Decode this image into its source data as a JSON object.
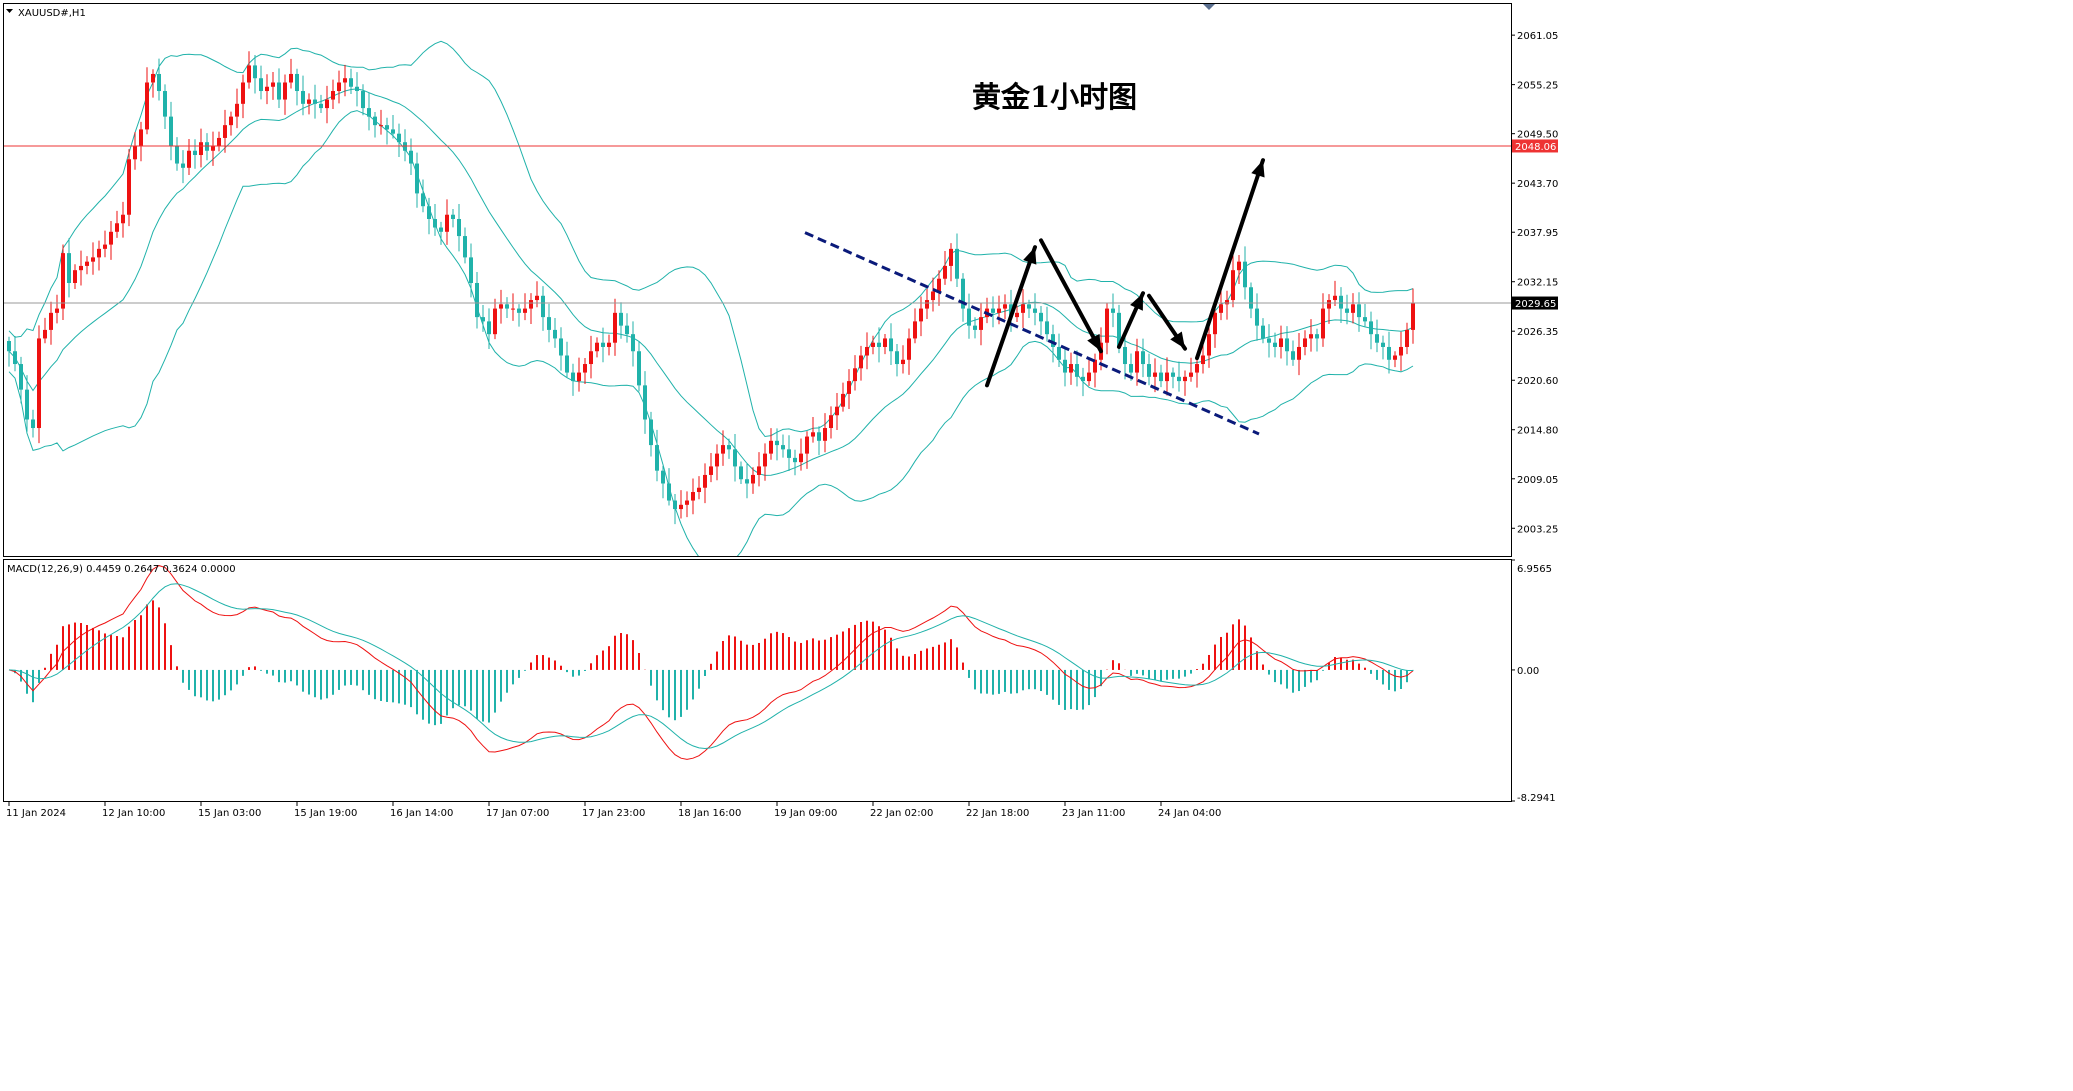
{
  "window": {
    "symbol_label": "XAUUSD#,H1"
  },
  "annotation": {
    "title": "黄金1小时图"
  },
  "colors": {
    "bull": "#ee1111",
    "bear": "#20b2aa",
    "bollinger": "#20b2aa",
    "resistance_line": "#ee3333",
    "current_price_line": "#999999",
    "trend_line": "#0a1a7a",
    "arrows": "#000000",
    "macd_line": "#ee1111",
    "signal_line": "#20b2aa",
    "frame": "#000000"
  },
  "chart_data": [
    {
      "type": "candlestick",
      "panel": "price",
      "symbol": "XAUUSD#",
      "timeframe": "H1",
      "price_axis": {
        "ticks": [
          "2061.05",
          "2055.25",
          "2049.50",
          "2043.70",
          "2037.95",
          "2032.15",
          "2026.35",
          "2020.60",
          "2014.80",
          "2009.05",
          "2003.25"
        ],
        "range": [
          2000.0,
          2064.7
        ]
      },
      "time_axis": {
        "labels": [
          "11 Jan 2024",
          "12 Jan 10:00",
          "15 Jan 03:00",
          "15 Jan 19:00",
          "16 Jan 14:00",
          "17 Jan 07:00",
          "17 Jan 23:00",
          "18 Jan 16:00",
          "19 Jan 09:00",
          "22 Jan 02:00",
          "22 Jan 18:00",
          "23 Jan 11:00",
          "24 Jan 04:00"
        ],
        "bars_between_labels": 16
      },
      "horizontal_lines": [
        {
          "name": "resistance",
          "price": 2048.06,
          "label": "2048.06"
        },
        {
          "name": "current-price",
          "price": 2029.65,
          "label": "2029.65"
        }
      ],
      "indicators": {
        "bollinger_bands": {
          "period": 20,
          "deviations": 2
        }
      },
      "close_series": [
        2024.0,
        2022.5,
        2019.5,
        2016.0,
        2015.0,
        2025.5,
        2026.5,
        2028.5,
        2029.0,
        2035.5,
        2032.0,
        2033.5,
        2034.0,
        2034.5,
        2035.0,
        2036.0,
        2036.5,
        2038.0,
        2039.0,
        2040.0,
        2046.5,
        2048.0,
        2050.0,
        2055.5,
        2056.5,
        2054.5,
        2051.5,
        2048.0,
        2046.0,
        2045.5,
        2047.5,
        2047.0,
        2048.5,
        2047.5,
        2048.0,
        2049.0,
        2050.5,
        2051.5,
        2053.0,
        2055.5,
        2057.5,
        2056.0,
        2054.5,
        2055.0,
        2055.5,
        2053.5,
        2055.5,
        2056.5,
        2054.5,
        2053.0,
        2053.5,
        2053.0,
        2052.5,
        2053.5,
        2054.5,
        2055.5,
        2056.0,
        2055.0,
        2054.5,
        2052.5,
        2051.5,
        2050.5,
        2050.5,
        2050.0,
        2049.5,
        2048.5,
        2047.5,
        2046.0,
        2042.5,
        2041.0,
        2039.5,
        2038.5,
        2038.0,
        2040.0,
        2039.5,
        2037.5,
        2035.0,
        2032.0,
        2028.0,
        2027.5,
        2026.0,
        2029.0,
        2029.5,
        2029.0,
        2029.0,
        2028.5,
        2029.0,
        2030.0,
        2030.5,
        2028.0,
        2026.5,
        2025.5,
        2023.5,
        2021.5,
        2020.5,
        2021.5,
        2022.5,
        2024.0,
        2025.0,
        2024.5,
        2025.0,
        2028.5,
        2027.0,
        2026.0,
        2024.0,
        2020.0,
        2016.0,
        2013.0,
        2010.0,
        2008.5,
        2006.5,
        2005.5,
        2006.0,
        2006.5,
        2007.5,
        2008.0,
        2009.5,
        2010.5,
        2012.0,
        2013.0,
        2012.5,
        2010.5,
        2009.0,
        2008.5,
        2009.5,
        2010.5,
        2012.0,
        2013.5,
        2013.0,
        2012.5,
        2011.5,
        2011.0,
        2012.0,
        2014.0,
        2014.5,
        2013.5,
        2015.0,
        2016.5,
        2017.5,
        2019.0,
        2020.5,
        2022.0,
        2023.5,
        2024.5,
        2025.0,
        2024.5,
        2025.5,
        2024.0,
        2022.5,
        2023.0,
        2025.5,
        2027.5,
        2029.0,
        2030.0,
        2031.0,
        2032.5,
        2034.0,
        2036.0,
        2032.5,
        2029.0,
        2027.0,
        2026.5,
        2028.0,
        2029.0,
        2028.5,
        2029.0,
        2029.5,
        2028.0,
        2028.5,
        2029.5,
        2029.0,
        2028.5,
        2027.5,
        2026.0,
        2024.5,
        2023.0,
        2021.5,
        2022.5,
        2021.0,
        2020.5,
        2021.5,
        2023.0,
        2025.0,
        2029.0,
        2028.5,
        2024.5,
        2022.5,
        2021.5,
        2024.0,
        2022.5,
        2021.0,
        2021.5,
        2020.5,
        2021.5,
        2021.0,
        2020.5,
        2021.0,
        2021.5,
        2022.5,
        2023.5,
        2026.0,
        2028.5,
        2029.5,
        2030.0,
        2033.5,
        2034.5,
        2031.5,
        2029.0,
        2027.0,
        2025.5,
        2025.0,
        2024.5,
        2025.5,
        2024.0,
        2023.0,
        2024.5,
        2025.5,
        2026.0,
        2025.5,
        2029.0,
        2030.0,
        2030.5,
        2029.0,
        2028.5,
        2029.5,
        2028.0,
        2027.5,
        2026.0,
        2025.0,
        2024.5,
        2023.0,
        2023.5,
        2024.5,
        2026.5,
        2029.65
      ]
    },
    {
      "type": "bar",
      "panel": "indicator",
      "title": "MACD(12,26,9) 0.4459 0.2647 0.3624 0.0000",
      "y_axis": {
        "ticks": [
          "6.9565",
          "0.00",
          "-8.2941"
        ],
        "range": [
          -8.2941,
          6.9565
        ]
      },
      "series": [
        {
          "role": "histogram",
          "source": "macd_minus_signal"
        },
        {
          "role": "line",
          "source": "macd"
        },
        {
          "role": "line",
          "source": "signal"
        }
      ]
    }
  ]
}
